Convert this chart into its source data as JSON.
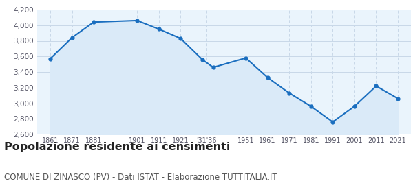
{
  "years": [
    1861,
    1871,
    1881,
    1901,
    1911,
    1921,
    1931,
    1936,
    1951,
    1961,
    1971,
    1981,
    1991,
    2001,
    2011,
    2021
  ],
  "population": [
    3570,
    3840,
    4040,
    4060,
    3950,
    3830,
    3560,
    3460,
    3580,
    3330,
    3130,
    2960,
    2760,
    2960,
    3220,
    3060
  ],
  "tick_labels": [
    "1861",
    "1871",
    "1881",
    "1901",
    "1911",
    "1921",
    "'31'36",
    "1951",
    "1961",
    "1971",
    "1981",
    "1991",
    "2001",
    "2011",
    "2021"
  ],
  "line_color": "#1a6ebf",
  "fill_color": "#daeaf8",
  "marker_color": "#1a6ebf",
  "grid_color": "#c8d8e8",
  "bg_color": "#eaf4fc",
  "ylim": [
    2600,
    4200
  ],
  "yticks": [
    2600,
    2800,
    3000,
    3200,
    3400,
    3600,
    3800,
    4000,
    4200
  ],
  "title": "Popolazione residente ai censimenti",
  "subtitle": "COMUNE DI ZINASCO (PV) - Dati ISTAT - Elaborazione TUTTITALIA.IT",
  "title_fontsize": 11.5,
  "subtitle_fontsize": 8.5
}
